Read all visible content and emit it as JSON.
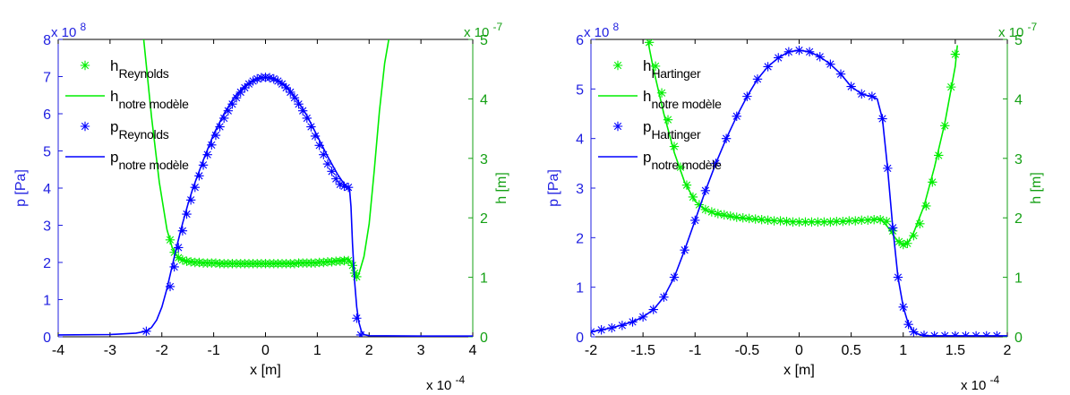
{
  "colors": {
    "pressure": "#0000ff",
    "film": "#00ee00",
    "left_axis": "#1f1fe0",
    "right_axis": "#14a014",
    "axis": "#000000"
  },
  "chart_data": [
    {
      "type": "line",
      "xlabel": "x [m]",
      "x_exponent": "x 10",
      "x_exponent_power": "-4",
      "ylabel_left": "p [Pa]",
      "y_left_exponent": "x 10",
      "y_left_exponent_power": "8",
      "ylabel_right": "h [m]",
      "y_right_exponent": "x 10",
      "y_right_exponent_power": "-7",
      "xlim": [
        -4,
        4
      ],
      "ylim_left": [
        0,
        8
      ],
      "ylim_right": [
        0,
        5
      ],
      "x_ticks": [
        "-4",
        "-3",
        "-2",
        "-1",
        "0",
        "1",
        "2",
        "3",
        "4"
      ],
      "y_left_ticks": [
        "0",
        "1",
        "2",
        "3",
        "4",
        "5",
        "6",
        "7",
        "8"
      ],
      "y_right_ticks": [
        "0",
        "1",
        "2",
        "3",
        "4",
        "5"
      ],
      "legend": [
        {
          "main": "h",
          "sub": "Reynolds",
          "style": "star",
          "axis": "right"
        },
        {
          "main": "h",
          "sub": "notre modèle",
          "style": "line",
          "axis": "right"
        },
        {
          "main": "p",
          "sub": "Reynolds",
          "style": "star",
          "axis": "left"
        },
        {
          "main": "p",
          "sub": "notre modèle",
          "style": "line",
          "axis": "left"
        }
      ],
      "series": [
        {
          "name": "h notre modèle",
          "axis": "right",
          "style": "line",
          "x": [
            -2.35,
            -2.2,
            -2.05,
            -1.9,
            -1.8,
            -1.7,
            -1.6,
            -1.5,
            -1.3,
            -1.0,
            -0.5,
            0,
            0.5,
            1.0,
            1.3,
            1.5,
            1.6,
            1.65,
            1.7,
            1.75,
            1.8,
            1.9,
            2.0,
            2.1,
            2.2,
            2.3,
            2.38
          ],
          "y": [
            5.0,
            3.7,
            2.6,
            1.8,
            1.5,
            1.35,
            1.29,
            1.27,
            1.25,
            1.24,
            1.23,
            1.23,
            1.24,
            1.25,
            1.27,
            1.3,
            1.31,
            1.25,
            1.12,
            1.0,
            1.05,
            1.35,
            1.9,
            2.8,
            3.8,
            4.6,
            5.0
          ]
        },
        {
          "name": "h Reynolds",
          "axis": "right",
          "style": "star",
          "x": [
            -1.84,
            -1.76,
            -1.68,
            -1.6,
            -1.52,
            -1.44,
            -1.36,
            -1.28,
            -1.2,
            -1.12,
            -1.04,
            -0.96,
            -0.88,
            -0.8,
            -0.72,
            -0.64,
            -0.56,
            -0.48,
            -0.4,
            -0.32,
            -0.24,
            -0.16,
            -0.08,
            0,
            0.08,
            0.16,
            0.24,
            0.32,
            0.4,
            0.48,
            0.56,
            0.64,
            0.72,
            0.8,
            0.88,
            0.96,
            1.04,
            1.12,
            1.2,
            1.28,
            1.36,
            1.44,
            1.52,
            1.6,
            1.68,
            1.72,
            1.76
          ],
          "y": [
            1.63,
            1.42,
            1.33,
            1.29,
            1.27,
            1.26,
            1.25,
            1.25,
            1.24,
            1.24,
            1.24,
            1.24,
            1.23,
            1.23,
            1.23,
            1.23,
            1.23,
            1.23,
            1.23,
            1.23,
            1.23,
            1.23,
            1.23,
            1.23,
            1.23,
            1.23,
            1.23,
            1.23,
            1.23,
            1.23,
            1.23,
            1.24,
            1.24,
            1.24,
            1.24,
            1.24,
            1.25,
            1.25,
            1.26,
            1.26,
            1.27,
            1.27,
            1.28,
            1.28,
            1.2,
            1.07,
            1.01
          ]
        },
        {
          "name": "p notre modèle",
          "axis": "left",
          "style": "line",
          "x": [
            -4.0,
            -3.0,
            -2.5,
            -2.3,
            -2.2,
            -2.1,
            -2.0,
            -1.9,
            -1.8,
            -1.7,
            -1.6,
            -1.5,
            -1.4,
            -1.2,
            -1.0,
            -0.8,
            -0.6,
            -0.4,
            -0.2,
            0,
            0.2,
            0.4,
            0.6,
            0.8,
            1.0,
            1.2,
            1.4,
            1.55,
            1.62,
            1.65,
            1.68,
            1.72,
            1.76,
            1.8,
            1.85,
            1.9,
            2.0,
            3.0,
            4.0
          ],
          "y": [
            0.05,
            0.06,
            0.1,
            0.15,
            0.25,
            0.45,
            0.8,
            1.3,
            1.9,
            2.5,
            3.05,
            3.55,
            4.0,
            4.75,
            5.45,
            6.0,
            6.45,
            6.75,
            6.93,
            6.98,
            6.93,
            6.75,
            6.4,
            5.95,
            5.4,
            4.85,
            4.35,
            4.05,
            4.0,
            3.5,
            2.5,
            1.5,
            0.8,
            0.4,
            0.15,
            0.06,
            0.03,
            0.02,
            0.02
          ]
        },
        {
          "name": "p Reynolds",
          "axis": "left",
          "style": "star",
          "x": [
            -2.3,
            -1.84,
            -1.76,
            -1.68,
            -1.6,
            -1.52,
            -1.44,
            -1.36,
            -1.28,
            -1.2,
            -1.12,
            -1.04,
            -0.96,
            -0.88,
            -0.8,
            -0.72,
            -0.64,
            -0.56,
            -0.48,
            -0.4,
            -0.32,
            -0.24,
            -0.16,
            -0.08,
            0,
            0.08,
            0.16,
            0.24,
            0.32,
            0.4,
            0.48,
            0.56,
            0.64,
            0.72,
            0.8,
            0.88,
            0.96,
            1.04,
            1.12,
            1.2,
            1.28,
            1.36,
            1.44,
            1.52,
            1.6,
            1.76,
            1.84
          ],
          "y": [
            0.15,
            1.35,
            1.88,
            2.4,
            2.85,
            3.3,
            3.68,
            4.02,
            4.33,
            4.62,
            4.9,
            5.16,
            5.42,
            5.65,
            5.88,
            6.08,
            6.26,
            6.43,
            6.58,
            6.7,
            6.8,
            6.88,
            6.94,
            6.97,
            6.98,
            6.97,
            6.94,
            6.88,
            6.8,
            6.7,
            6.58,
            6.43,
            6.26,
            6.08,
            5.88,
            5.65,
            5.4,
            5.15,
            4.9,
            4.65,
            4.45,
            4.25,
            4.1,
            4.05,
            4.02,
            0.5,
            0.05
          ]
        }
      ]
    },
    {
      "type": "line",
      "xlabel": "x [m]",
      "x_exponent": "x 10",
      "x_exponent_power": "-4",
      "ylabel_left": "p [Pa]",
      "y_left_exponent": "x 10",
      "y_left_exponent_power": "8",
      "ylabel_right": "h [m]",
      "y_right_exponent": "x 10",
      "y_right_exponent_power": "-7",
      "xlim": [
        -2,
        2
      ],
      "ylim_left": [
        0,
        6
      ],
      "ylim_right": [
        0,
        5
      ],
      "x_ticks": [
        "-2",
        "-1.5",
        "-1",
        "-0.5",
        "0",
        "0.5",
        "1",
        "1.5",
        "2"
      ],
      "y_left_ticks": [
        "0",
        "1",
        "2",
        "3",
        "4",
        "5",
        "6"
      ],
      "y_right_ticks": [
        "0",
        "1",
        "2",
        "3",
        "4",
        "5"
      ],
      "legend": [
        {
          "main": "h",
          "sub": "Hartinger",
          "style": "star",
          "axis": "right"
        },
        {
          "main": "h",
          "sub": "notre modèle",
          "style": "line",
          "axis": "right"
        },
        {
          "main": "p",
          "sub": "Hartinger",
          "style": "star",
          "axis": "left"
        },
        {
          "main": "p",
          "sub": "notre modèle",
          "style": "line",
          "axis": "left"
        }
      ],
      "series": [
        {
          "name": "h notre modèle",
          "axis": "right",
          "style": "line",
          "x": [
            -1.45,
            -1.4,
            -1.3,
            -1.2,
            -1.1,
            -1.0,
            -0.9,
            -0.8,
            -0.6,
            -0.4,
            -0.2,
            0,
            0.2,
            0.4,
            0.6,
            0.7,
            0.75,
            0.8,
            0.85,
            0.9,
            0.95,
            1.0,
            1.05,
            1.1,
            1.2,
            1.3,
            1.4,
            1.5,
            1.52
          ],
          "y": [
            4.95,
            4.5,
            3.75,
            3.1,
            2.6,
            2.28,
            2.13,
            2.06,
            2.0,
            1.97,
            1.95,
            1.93,
            1.93,
            1.94,
            1.96,
            1.97,
            1.98,
            1.95,
            1.85,
            1.72,
            1.6,
            1.55,
            1.6,
            1.75,
            2.2,
            2.85,
            3.6,
            4.55,
            4.9
          ]
        },
        {
          "name": "h Hartinger",
          "axis": "right",
          "style": "star",
          "x": [
            -1.44,
            -1.38,
            -1.32,
            -1.26,
            -1.2,
            -1.14,
            -1.08,
            -1.02,
            -0.96,
            -0.9,
            -0.84,
            -0.78,
            -0.72,
            -0.66,
            -0.6,
            -0.54,
            -0.48,
            -0.42,
            -0.36,
            -0.3,
            -0.24,
            -0.18,
            -0.12,
            -0.06,
            0,
            0.06,
            0.12,
            0.18,
            0.24,
            0.3,
            0.36,
            0.42,
            0.48,
            0.54,
            0.6,
            0.66,
            0.72,
            0.78,
            0.84,
            0.9,
            0.96,
            1.0,
            1.04,
            1.1,
            1.16,
            1.22,
            1.28,
            1.34,
            1.4,
            1.46,
            1.5
          ],
          "y": [
            4.95,
            4.55,
            4.1,
            3.65,
            3.2,
            2.85,
            2.55,
            2.35,
            2.22,
            2.14,
            2.1,
            2.07,
            2.05,
            2.03,
            2.01,
            2.0,
            1.99,
            1.98,
            1.97,
            1.96,
            1.95,
            1.95,
            1.94,
            1.93,
            1.93,
            1.93,
            1.93,
            1.93,
            1.93,
            1.93,
            1.94,
            1.94,
            1.95,
            1.95,
            1.96,
            1.96,
            1.97,
            1.97,
            1.94,
            1.78,
            1.6,
            1.55,
            1.57,
            1.7,
            1.9,
            2.2,
            2.6,
            3.05,
            3.55,
            4.2,
            4.75
          ]
        },
        {
          "name": "p notre modèle",
          "axis": "left",
          "style": "line",
          "x": [
            -2.0,
            -1.8,
            -1.6,
            -1.5,
            -1.4,
            -1.3,
            -1.2,
            -1.1,
            -1.0,
            -0.9,
            -0.8,
            -0.7,
            -0.6,
            -0.5,
            -0.4,
            -0.3,
            -0.2,
            -0.1,
            0,
            0.1,
            0.2,
            0.3,
            0.4,
            0.5,
            0.6,
            0.65,
            0.7,
            0.75,
            0.8,
            0.85,
            0.9,
            0.95,
            1.0,
            1.05,
            1.1,
            1.15,
            1.2,
            1.5,
            2.0
          ],
          "y": [
            0.1,
            0.18,
            0.3,
            0.4,
            0.55,
            0.8,
            1.2,
            1.75,
            2.35,
            2.95,
            3.5,
            4.0,
            4.45,
            4.85,
            5.2,
            5.45,
            5.63,
            5.75,
            5.78,
            5.75,
            5.65,
            5.5,
            5.3,
            5.05,
            4.9,
            4.87,
            4.85,
            4.8,
            4.4,
            3.4,
            2.2,
            1.2,
            0.6,
            0.25,
            0.1,
            0.05,
            0.02,
            0.02,
            0.02
          ]
        },
        {
          "name": "p Hartinger",
          "axis": "left",
          "style": "star",
          "x": [
            -2.0,
            -1.9,
            -1.8,
            -1.7,
            -1.6,
            -1.5,
            -1.4,
            -1.3,
            -1.2,
            -1.1,
            -1.0,
            -0.9,
            -0.8,
            -0.7,
            -0.6,
            -0.5,
            -0.4,
            -0.3,
            -0.2,
            -0.1,
            0,
            0.1,
            0.2,
            0.3,
            0.4,
            0.5,
            0.6,
            0.7,
            0.8,
            0.85,
            0.9,
            0.95,
            1.0,
            1.05,
            1.1,
            1.2,
            1.3,
            1.4,
            1.5,
            1.6,
            1.7,
            1.8,
            1.9
          ],
          "y": [
            0.1,
            0.14,
            0.18,
            0.23,
            0.3,
            0.4,
            0.55,
            0.8,
            1.2,
            1.75,
            2.35,
            2.95,
            3.5,
            4.0,
            4.45,
            4.85,
            5.2,
            5.45,
            5.63,
            5.75,
            5.78,
            5.75,
            5.65,
            5.5,
            5.3,
            5.05,
            4.9,
            4.85,
            4.4,
            3.4,
            2.2,
            1.2,
            0.6,
            0.25,
            0.1,
            0.03,
            0.02,
            0.02,
            0.02,
            0.02,
            0.02,
            0.02,
            0.02
          ]
        }
      ]
    }
  ]
}
